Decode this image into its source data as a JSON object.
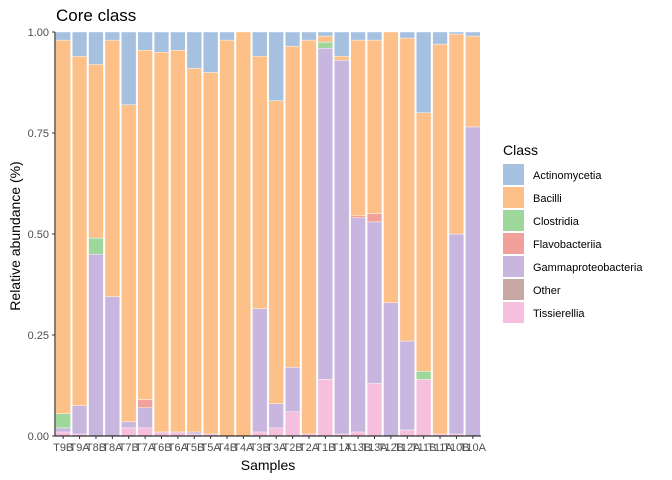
{
  "chart_data": {
    "type": "bar",
    "stacked": true,
    "title": "Core class",
    "xlabel": "Samples",
    "ylabel": "Relative abundance (%)",
    "ylim": [
      0,
      1
    ],
    "y_ticks": [
      "0.00",
      "0.25",
      "0.50",
      "0.75",
      "1.00"
    ],
    "legend_title": "Class",
    "legend_position": "right",
    "grid": false,
    "categories": [
      "T9B",
      "T9A",
      "T8B",
      "T8A",
      "T7B",
      "T7A",
      "T6B",
      "T6A",
      "T5B",
      "T5A",
      "T4B",
      "T4A",
      "T3B",
      "T3A",
      "T2B",
      "T2A",
      "T1B",
      "T1A",
      "T13B",
      "T13A",
      "T12B",
      "T12A",
      "T11B",
      "T11A",
      "T10B",
      "T10A"
    ],
    "series": [
      {
        "name": "Tissierellia",
        "color": "#f5bfdd",
        "values": [
          0.01,
          0.005,
          0.0,
          0.0,
          0.02,
          0.02,
          0.01,
          0.01,
          0.005,
          0.005,
          0.0,
          0.0,
          0.01,
          0.02,
          0.06,
          0.005,
          0.14,
          0.005,
          0.01,
          0.13,
          0.0,
          0.015,
          0.14,
          0.005,
          0.005,
          0.0
        ]
      },
      {
        "name": "Other",
        "color": "#c8a8a3",
        "values": [
          0.0,
          0.0,
          0.0,
          0.0,
          0.0,
          0.0,
          0.0,
          0.0,
          0.0,
          0.0,
          0.0,
          0.0,
          0.0,
          0.0,
          0.0,
          0.0,
          0.0,
          0.0,
          0.0,
          0.0,
          0.0,
          0.0,
          0.0,
          0.0,
          0.0,
          0.0
        ]
      },
      {
        "name": "Gammaproteobacteria",
        "color": "#c8b6de",
        "values": [
          0.01,
          0.07,
          0.45,
          0.345,
          0.015,
          0.05,
          0.0,
          0.0,
          0.005,
          0.0,
          0.0,
          0.0,
          0.305,
          0.06,
          0.11,
          0.0,
          0.82,
          0.925,
          0.53,
          0.4,
          0.33,
          0.22,
          0.0,
          0.0,
          0.495,
          0.765
        ]
      },
      {
        "name": "Flavobacteriia",
        "color": "#f1a09a",
        "values": [
          0.0,
          0.0,
          0.0,
          0.0,
          0.0,
          0.02,
          0.0,
          0.0,
          0.0,
          0.0,
          0.0,
          0.0,
          0.0,
          0.0,
          0.0,
          0.0,
          0.0,
          0.0,
          0.005,
          0.02,
          0.0,
          0.0,
          0.0,
          0.0,
          0.0,
          0.0
        ]
      },
      {
        "name": "Clostridia",
        "color": "#9dd79b",
        "values": [
          0.035,
          0.0,
          0.04,
          0.0,
          0.0,
          0.0,
          0.0,
          0.0,
          0.0,
          0.0,
          0.0,
          0.0,
          0.0,
          0.0,
          0.0,
          0.0,
          0.015,
          0.0,
          0.0,
          0.0,
          0.0,
          0.0,
          0.02,
          0.0,
          0.0,
          0.0
        ]
      },
      {
        "name": "Bacilli",
        "color": "#fdc088",
        "values": [
          0.925,
          0.865,
          0.43,
          0.635,
          0.785,
          0.865,
          0.94,
          0.945,
          0.9,
          0.895,
          0.98,
          1.0,
          0.625,
          0.75,
          0.795,
          0.975,
          0.015,
          0.01,
          0.435,
          0.43,
          0.67,
          0.75,
          0.64,
          0.965,
          0.495,
          0.225
        ]
      },
      {
        "name": "Actinomycetia",
        "color": "#a6c1e0",
        "values": [
          0.02,
          0.06,
          0.08,
          0.02,
          0.18,
          0.045,
          0.05,
          0.045,
          0.09,
          0.1,
          0.02,
          0.0,
          0.06,
          0.17,
          0.035,
          0.02,
          0.01,
          0.06,
          0.02,
          0.02,
          0.0,
          0.015,
          0.2,
          0.03,
          0.005,
          0.01
        ]
      }
    ],
    "legend_order": [
      "Actinomycetia",
      "Bacilli",
      "Clostridia",
      "Flavobacteriia",
      "Gammaproteobacteria",
      "Other",
      "Tissierellia"
    ]
  }
}
